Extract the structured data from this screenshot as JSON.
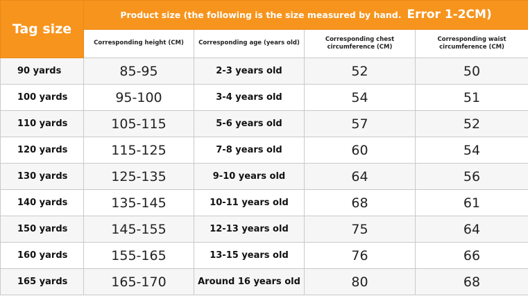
{
  "header": {
    "tag_size": "Tag size",
    "product_size": "Product size (the following is the size measured by hand.",
    "error": "Error 1-2CM)",
    "col_height": "Corresponding height (CM)",
    "col_age": "Corresponding age (years old)",
    "col_chest": "Corresponding chest circumference (CM)",
    "col_waist": "Corresponding waist circumference (CM)"
  },
  "rows": [
    {
      "tag": "90 yards",
      "height": "85-95",
      "age": "2-3 years old",
      "chest": "52",
      "waist": "50"
    },
    {
      "tag": "100 yards",
      "height": "95-100",
      "age": "3-4 years old",
      "chest": "54",
      "waist": "51"
    },
    {
      "tag": "110 yards",
      "height": "105-115",
      "age": "5-6 years old",
      "chest": "57",
      "waist": "52"
    },
    {
      "tag": "120 yards",
      "height": "115-125",
      "age": "7-8 years old",
      "chest": "60",
      "waist": "54"
    },
    {
      "tag": "130 yards",
      "height": "125-135",
      "age": "9-10 years old",
      "chest": "64",
      "waist": "56"
    },
    {
      "tag": "140 yards",
      "height": "135-145",
      "age": "10-11 years old",
      "chest": "68",
      "waist": "61"
    },
    {
      "tag": "150 yards",
      "height": "145-155",
      "age": "12-13 years old",
      "chest": "75",
      "waist": "64"
    },
    {
      "tag": "160 yards",
      "height": "155-165",
      "age": "13-15 years old",
      "chest": "76",
      "waist": "66"
    },
    {
      "tag": "165 yards",
      "height": "165-170",
      "age": "Around 16 years old",
      "chest": "80",
      "waist": "68"
    }
  ],
  "colors": {
    "header_orange": "#f7941d",
    "header_text": "#ffffff"
  }
}
